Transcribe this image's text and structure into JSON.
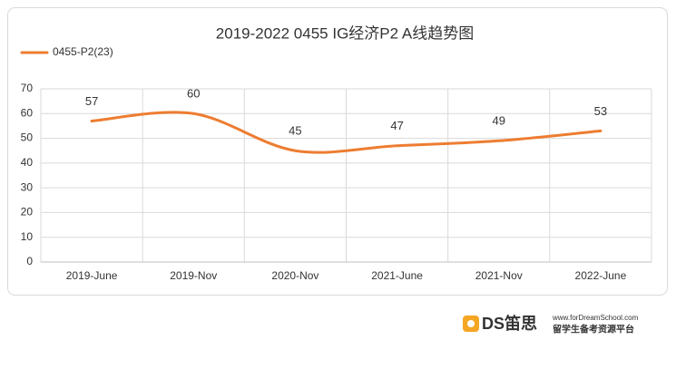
{
  "chart_data": {
    "type": "line",
    "title": "2019-2022 0455 IG经济P2 A线趋势图",
    "categories": [
      "2019-June",
      "2019-Nov",
      "2020-Nov",
      "2021-June",
      "2021-Nov",
      "2022-June"
    ],
    "series": [
      {
        "name": "0455-P2(23)",
        "color": "#ed7d31",
        "values": [
          57,
          60,
          45,
          47,
          49,
          53
        ]
      }
    ],
    "ylim": [
      0,
      70
    ],
    "yticks": [
      0,
      10,
      20,
      30,
      40,
      50,
      60,
      70
    ],
    "grid": true,
    "smooth": true,
    "legend": "top-left"
  },
  "watermark": {
    "brand": "DS笛思",
    "url": "www.forDreamSchool.com",
    "slogan": "留学生备考资源平台"
  }
}
